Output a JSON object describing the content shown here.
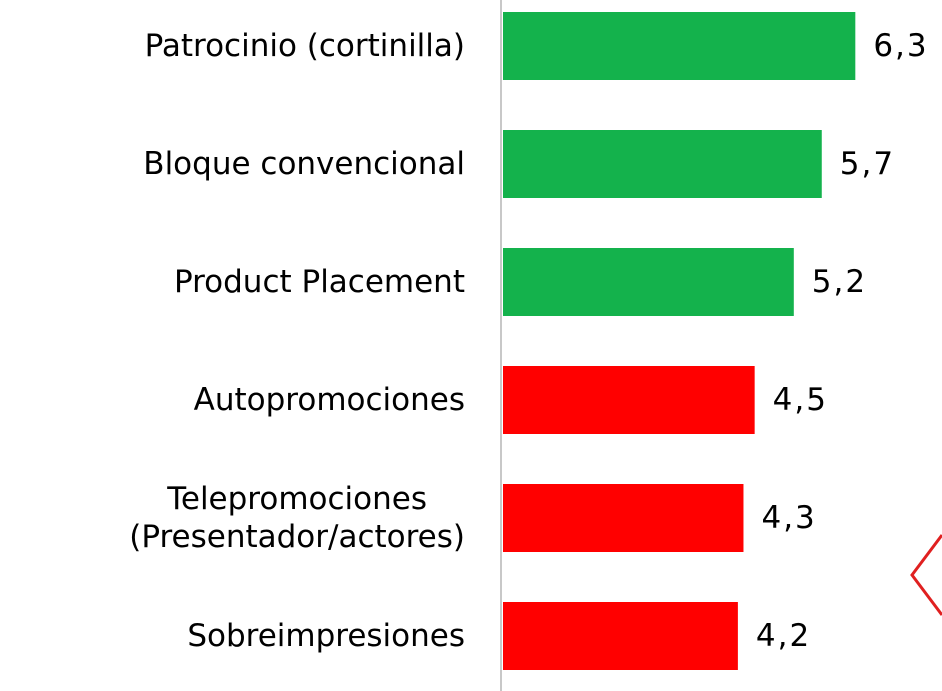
{
  "chart_data": {
    "type": "barh",
    "categories": [
      "Patrocinio (cortinilla)",
      "Bloque convencional",
      "Product Placement",
      "Autopromociones",
      "Telepromociones\n(Presentador/actores)",
      "Sobreimpresiones"
    ],
    "values": [
      6.3,
      5.7,
      5.2,
      4.5,
      4.3,
      4.2
    ],
    "value_labels": [
      "6,3",
      "5,7",
      "5,2",
      "4,5",
      "4,3",
      "4,2"
    ],
    "colors": [
      "#14b24c",
      "#14b24c",
      "#14b24c",
      "#ff0000",
      "#ff0000",
      "#ff0000"
    ],
    "xlim": [
      0,
      7.85
    ]
  }
}
